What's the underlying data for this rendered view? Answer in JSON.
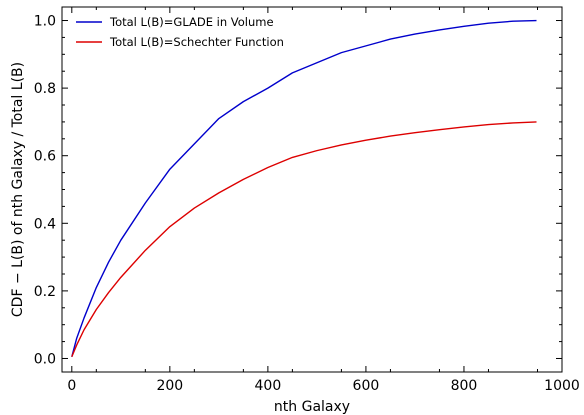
{
  "chart_data": {
    "type": "line",
    "xlabel": "nth Galaxy",
    "ylabel": "CDF − L(B) of nth Galaxy / Total L(B)",
    "xlim": [
      -20,
      1000
    ],
    "ylim": [
      -0.04,
      1.04
    ],
    "xticks": [
      0,
      200,
      400,
      600,
      800,
      1000
    ],
    "yticks": [
      0.0,
      0.2,
      0.4,
      0.6,
      0.8,
      1.0
    ],
    "xtick_labels": [
      "0",
      "200",
      "400",
      "600",
      "800",
      "1000"
    ],
    "ytick_labels": [
      "0.0",
      "0.2",
      "0.4",
      "0.6",
      "0.8",
      "1.0"
    ],
    "grid": false,
    "legend_position": "top-left",
    "series": [
      {
        "name": "Total L(B)=GLADE in Volume",
        "color": "#0000cc",
        "x": [
          0,
          10,
          25,
          50,
          75,
          100,
          150,
          200,
          250,
          300,
          350,
          400,
          450,
          500,
          550,
          600,
          650,
          700,
          750,
          800,
          850,
          900,
          948
        ],
        "y": [
          0.005,
          0.06,
          0.12,
          0.21,
          0.285,
          0.35,
          0.46,
          0.56,
          0.635,
          0.71,
          0.76,
          0.8,
          0.845,
          0.875,
          0.905,
          0.925,
          0.945,
          0.96,
          0.972,
          0.983,
          0.992,
          0.998,
          1.0
        ]
      },
      {
        "name": "Total L(B)=Schechter Function",
        "color": "#dd0000",
        "x": [
          0,
          10,
          25,
          50,
          75,
          100,
          150,
          200,
          250,
          300,
          350,
          400,
          450,
          500,
          550,
          600,
          650,
          700,
          750,
          800,
          850,
          900,
          948
        ],
        "y": [
          0.005,
          0.04,
          0.085,
          0.145,
          0.195,
          0.24,
          0.32,
          0.39,
          0.445,
          0.49,
          0.53,
          0.565,
          0.595,
          0.615,
          0.632,
          0.646,
          0.658,
          0.668,
          0.677,
          0.685,
          0.692,
          0.697,
          0.7
        ]
      }
    ]
  }
}
